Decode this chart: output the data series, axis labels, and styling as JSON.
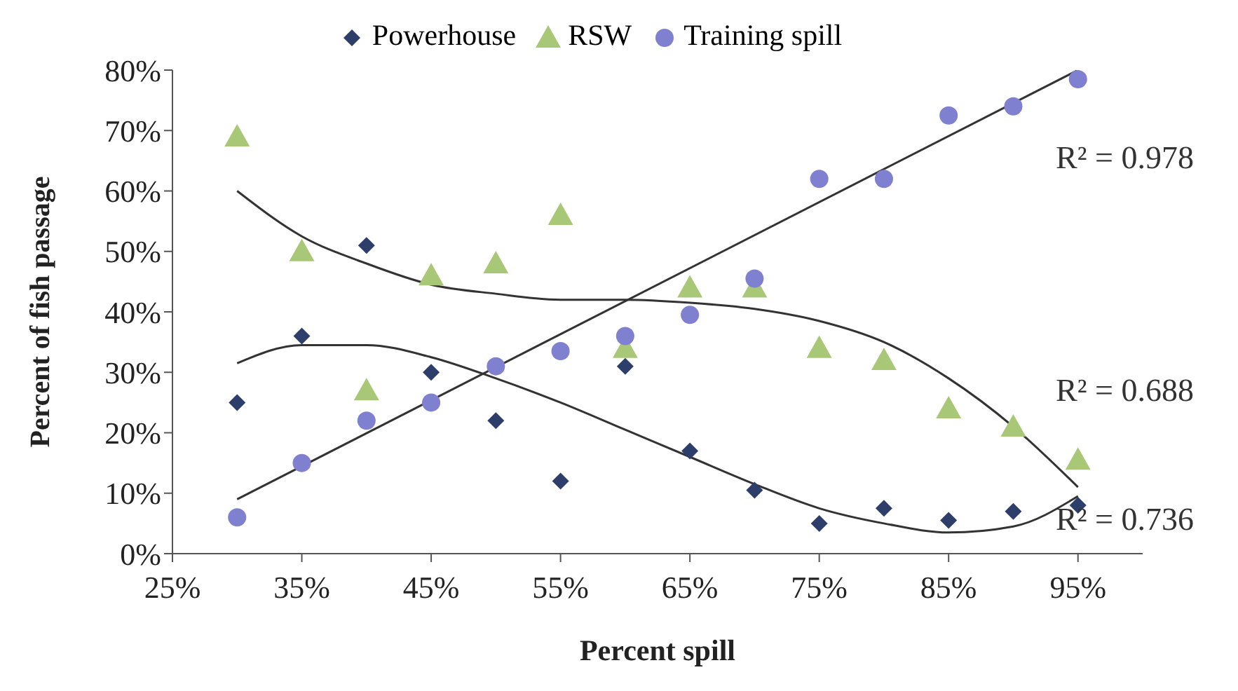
{
  "chart_data": {
    "type": "scatter",
    "xlabel": "Percent spill",
    "ylabel": "Percent of fish passage",
    "x": [
      30,
      35,
      40,
      45,
      50,
      55,
      60,
      65,
      70,
      75,
      80,
      85,
      90,
      95
    ],
    "series": [
      {
        "name": "Powerhouse",
        "color": "#2e3e6b",
        "marker": "diamond",
        "values": [
          25,
          36,
          51,
          30,
          22,
          12,
          31,
          17,
          10.5,
          5,
          7.5,
          5.5,
          7,
          8
        ]
      },
      {
        "name": "RSW",
        "color": "#a8c878",
        "marker": "triangle",
        "values": [
          69,
          50,
          27,
          46,
          48,
          56,
          34,
          44,
          44,
          34,
          32,
          24,
          21,
          15.5
        ]
      },
      {
        "name": "Training spill",
        "color": "#8080d0",
        "marker": "circle",
        "values": [
          6,
          15,
          22,
          25,
          31,
          33.5,
          36,
          39.5,
          45.5,
          62,
          62,
          72.5,
          74,
          78.5
        ]
      },
      {
        "type": "line",
        "color": "#333333",
        "marker": "none",
        "x": [
          30,
          95
        ],
        "values": [
          9,
          80
        ]
      },
      {
        "type": "line",
        "color": "#333333",
        "marker": "none",
        "x": [
          30,
          35,
          40,
          45,
          50,
          55,
          60,
          65,
          70,
          75,
          80,
          85,
          90,
          95
        ],
        "values": [
          60,
          52.5,
          48,
          44.5,
          43,
          42,
          42,
          41.5,
          40.5,
          38.5,
          35,
          29,
          21,
          11
        ]
      },
      {
        "type": "line",
        "color": "#333333",
        "marker": "none",
        "x": [
          30,
          35,
          40,
          45,
          50,
          55,
          60,
          65,
          70,
          75,
          80,
          85,
          90,
          95
        ],
        "values": [
          31.5,
          34.5,
          34.5,
          32.5,
          29,
          25,
          20.5,
          16,
          11.5,
          7.5,
          5,
          3.5,
          4.5,
          9.5
        ]
      }
    ],
    "xlim": [
      25,
      100
    ],
    "xticks": [
      {
        "value": 25,
        "label": "25%"
      },
      {
        "value": 35,
        "label": "35%"
      },
      {
        "value": 45,
        "label": "45%"
      },
      {
        "value": 55,
        "label": "55%"
      },
      {
        "value": 65,
        "label": "65%"
      },
      {
        "value": 75,
        "label": "75%"
      },
      {
        "value": 85,
        "label": "85%"
      },
      {
        "value": 95,
        "label": "95%"
      }
    ],
    "ylim": [
      0,
      80
    ],
    "yticks": [
      {
        "value": 0,
        "label": "0%"
      },
      {
        "value": 10,
        "label": "10%"
      },
      {
        "value": 20,
        "label": "20%"
      },
      {
        "value": 30,
        "label": "30%"
      },
      {
        "value": 40,
        "label": "40%"
      },
      {
        "value": 50,
        "label": "50%"
      },
      {
        "value": 60,
        "label": "60%"
      },
      {
        "value": 70,
        "label": "70%"
      },
      {
        "value": 80,
        "label": "80%"
      }
    ],
    "annotations": [
      "R² = 0.978",
      "R² = 0.688",
      "R² = 0.736"
    ],
    "grid": false,
    "legend": "top"
  }
}
